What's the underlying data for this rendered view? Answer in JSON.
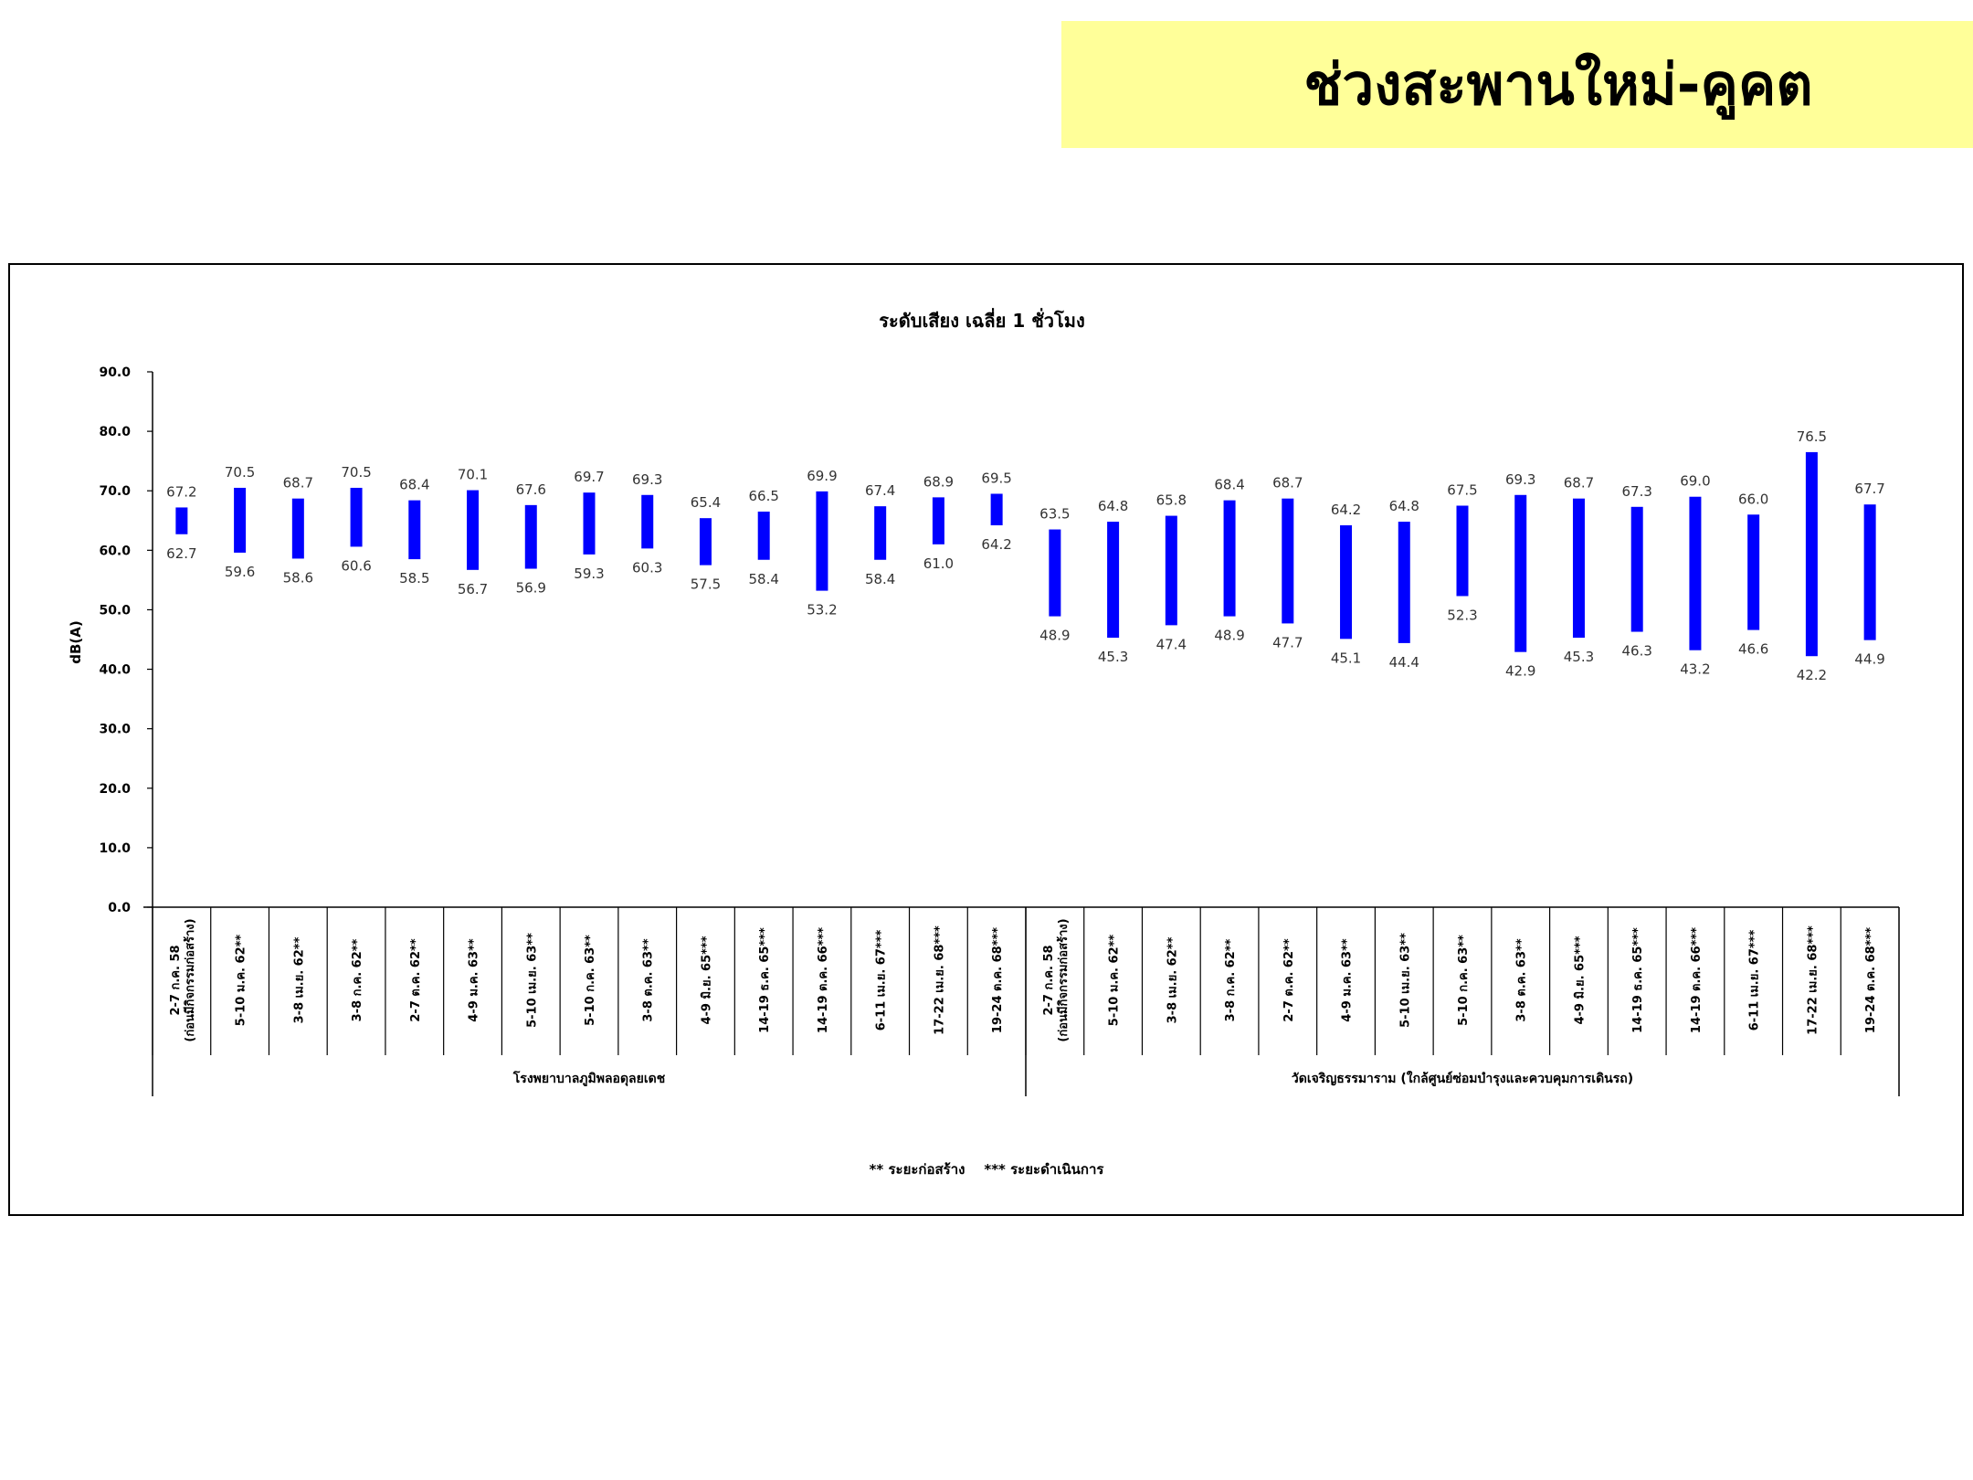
{
  "page_title": "ช่วงสะพานใหม่-คูคต",
  "chart_data": {
    "type": "bar",
    "subtype": "floating-range",
    "title": "ระดับเสียง เฉลี่ย 1 ชั่วโมง",
    "ylabel": "dB(A)",
    "ylim": [
      0,
      90
    ],
    "yticks": [
      "0.0",
      "10.0",
      "20.0",
      "30.0",
      "40.0",
      "50.0",
      "60.0",
      "70.0",
      "80.0",
      "90.0"
    ],
    "bar_color": "#0000ff",
    "legend_note": "** ระยะก่อสร้าง    *** ระยะดำเนินการ",
    "groups": [
      {
        "name": "โรงพยาบาลภูมิพลอดุลยเดช",
        "categories": [
          [
            "2-7 ก.ค. 58",
            "(ก่อนมีกิจกรรมก่อสร้าง)"
          ],
          [
            "5-10 ม.ค. 62**"
          ],
          [
            "3-8 เม.ย. 62**"
          ],
          [
            "3-8 ก.ค. 62**"
          ],
          [
            "2-7 ต.ค. 62**"
          ],
          [
            "4-9 ม.ค. 63**"
          ],
          [
            "5-10 เม.ย. 63**"
          ],
          [
            "5-10 ก.ค. 63**"
          ],
          [
            "3-8 ต.ค. 63**"
          ],
          [
            "4-9 มิ.ย. 65***"
          ],
          [
            "14-19 ธ.ค. 65***"
          ],
          [
            "14-19 ต.ค. 66***"
          ],
          [
            "6-11 เม.ย. 67***"
          ],
          [
            "17-22 เม.ย. 68***"
          ],
          [
            "19-24 ต.ค. 68***"
          ]
        ],
        "max": [
          67.2,
          70.5,
          68.7,
          70.5,
          68.4,
          70.1,
          67.6,
          69.7,
          69.3,
          65.4,
          66.5,
          69.9,
          67.4,
          68.9,
          69.5
        ],
        "min": [
          62.7,
          59.6,
          58.6,
          60.6,
          58.5,
          56.7,
          56.9,
          59.3,
          60.3,
          57.5,
          58.4,
          53.2,
          58.4,
          61.0,
          64.2
        ]
      },
      {
        "name": "วัดเจริญธรรมาราม (ใกล้ศูนย์ซ่อมบำรุงและควบคุมการเดินรถ)",
        "categories": [
          [
            "2-7 ก.ค. 58",
            "(ก่อนมีกิจกรรมก่อสร้าง)"
          ],
          [
            "5-10 ม.ค. 62**"
          ],
          [
            "3-8 เม.ย. 62**"
          ],
          [
            "3-8 ก.ค. 62**"
          ],
          [
            "2-7 ต.ค. 62**"
          ],
          [
            "4-9 ม.ค. 63**"
          ],
          [
            "5-10 เม.ย. 63**"
          ],
          [
            "5-10 ก.ค. 63**"
          ],
          [
            "3-8 ต.ค. 63**"
          ],
          [
            "4-9 มิ.ย. 65***"
          ],
          [
            "14-19 ธ.ค. 65***"
          ],
          [
            "14-19 ต.ค. 66***"
          ],
          [
            "6-11 เม.ย. 67***"
          ],
          [
            "17-22 เม.ย. 68***"
          ],
          [
            "19-24 ต.ค. 68***"
          ]
        ],
        "max": [
          63.5,
          64.8,
          65.8,
          68.4,
          68.7,
          64.2,
          64.8,
          67.5,
          69.3,
          68.7,
          67.3,
          69.0,
          66.0,
          76.5,
          67.7
        ],
        "min": [
          48.9,
          45.3,
          47.4,
          48.9,
          47.7,
          45.1,
          44.4,
          52.3,
          42.9,
          45.3,
          46.3,
          43.2,
          46.6,
          42.2,
          44.9
        ]
      }
    ]
  }
}
